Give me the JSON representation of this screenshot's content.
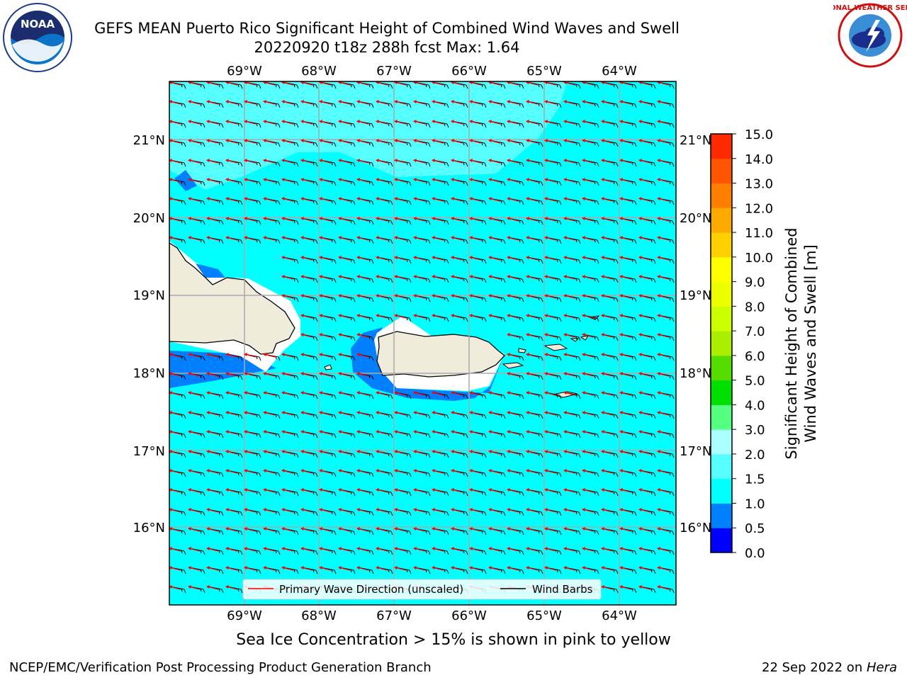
{
  "title": {
    "line1": "GEFS MEAN Puerto Rico Significant Height of Combined Wind Waves and Swell",
    "line2": "20220920 t18z 288h fcst   Max: 1.64"
  },
  "map": {
    "lon_labels": [
      "69°W",
      "68°W",
      "67°W",
      "66°W",
      "65°W",
      "64°W"
    ],
    "lat_labels": [
      "21°N",
      "20°N",
      "19°N",
      "18°N",
      "17°N",
      "16°N"
    ],
    "ocean_color": "#00ffff",
    "land_color": "#efecdc",
    "legend": {
      "primary_wave_label": "Primary Wave Direction (unscaled)",
      "wind_barbs_label": "Wind Barbs",
      "primary_wave_color": "#ff0000",
      "wind_barbs_color": "#000000"
    }
  },
  "colorbar": {
    "label_line1": "Significant Height of Combined",
    "label_line2": "Wind Waves and Swell [m]",
    "ticks": [
      "0.0",
      "0.5",
      "1.0",
      "1.5",
      "2.0",
      "3.0",
      "4.0",
      "5.0",
      "6.0",
      "7.0",
      "8.0",
      "9.0",
      "10.0",
      "11.0",
      "12.0",
      "13.0",
      "14.0",
      "15.0"
    ],
    "colors": [
      "#0000ff",
      "#0080ff",
      "#00ffff",
      "#55ffff",
      "#aaffff",
      "#55ff80",
      "#00e000",
      "#55dd00",
      "#aaee00",
      "#ccff00",
      "#eeff00",
      "#ffff00",
      "#ffd000",
      "#ffaa00",
      "#ff8000",
      "#ff5500",
      "#ff2a00",
      "#ff0000"
    ]
  },
  "caption": "Sea Ice Concentration > 15% is shown in pink to yellow",
  "footer": {
    "left": "NCEP/EMC/Verification Post Processing Product Generation Branch",
    "right_prefix": "22 Sep 2022 on ",
    "right_host": "Hera"
  },
  "logos": {
    "noaa_text": "NOAA",
    "nws_text": "NATIONAL WEATHER SERVICE"
  }
}
